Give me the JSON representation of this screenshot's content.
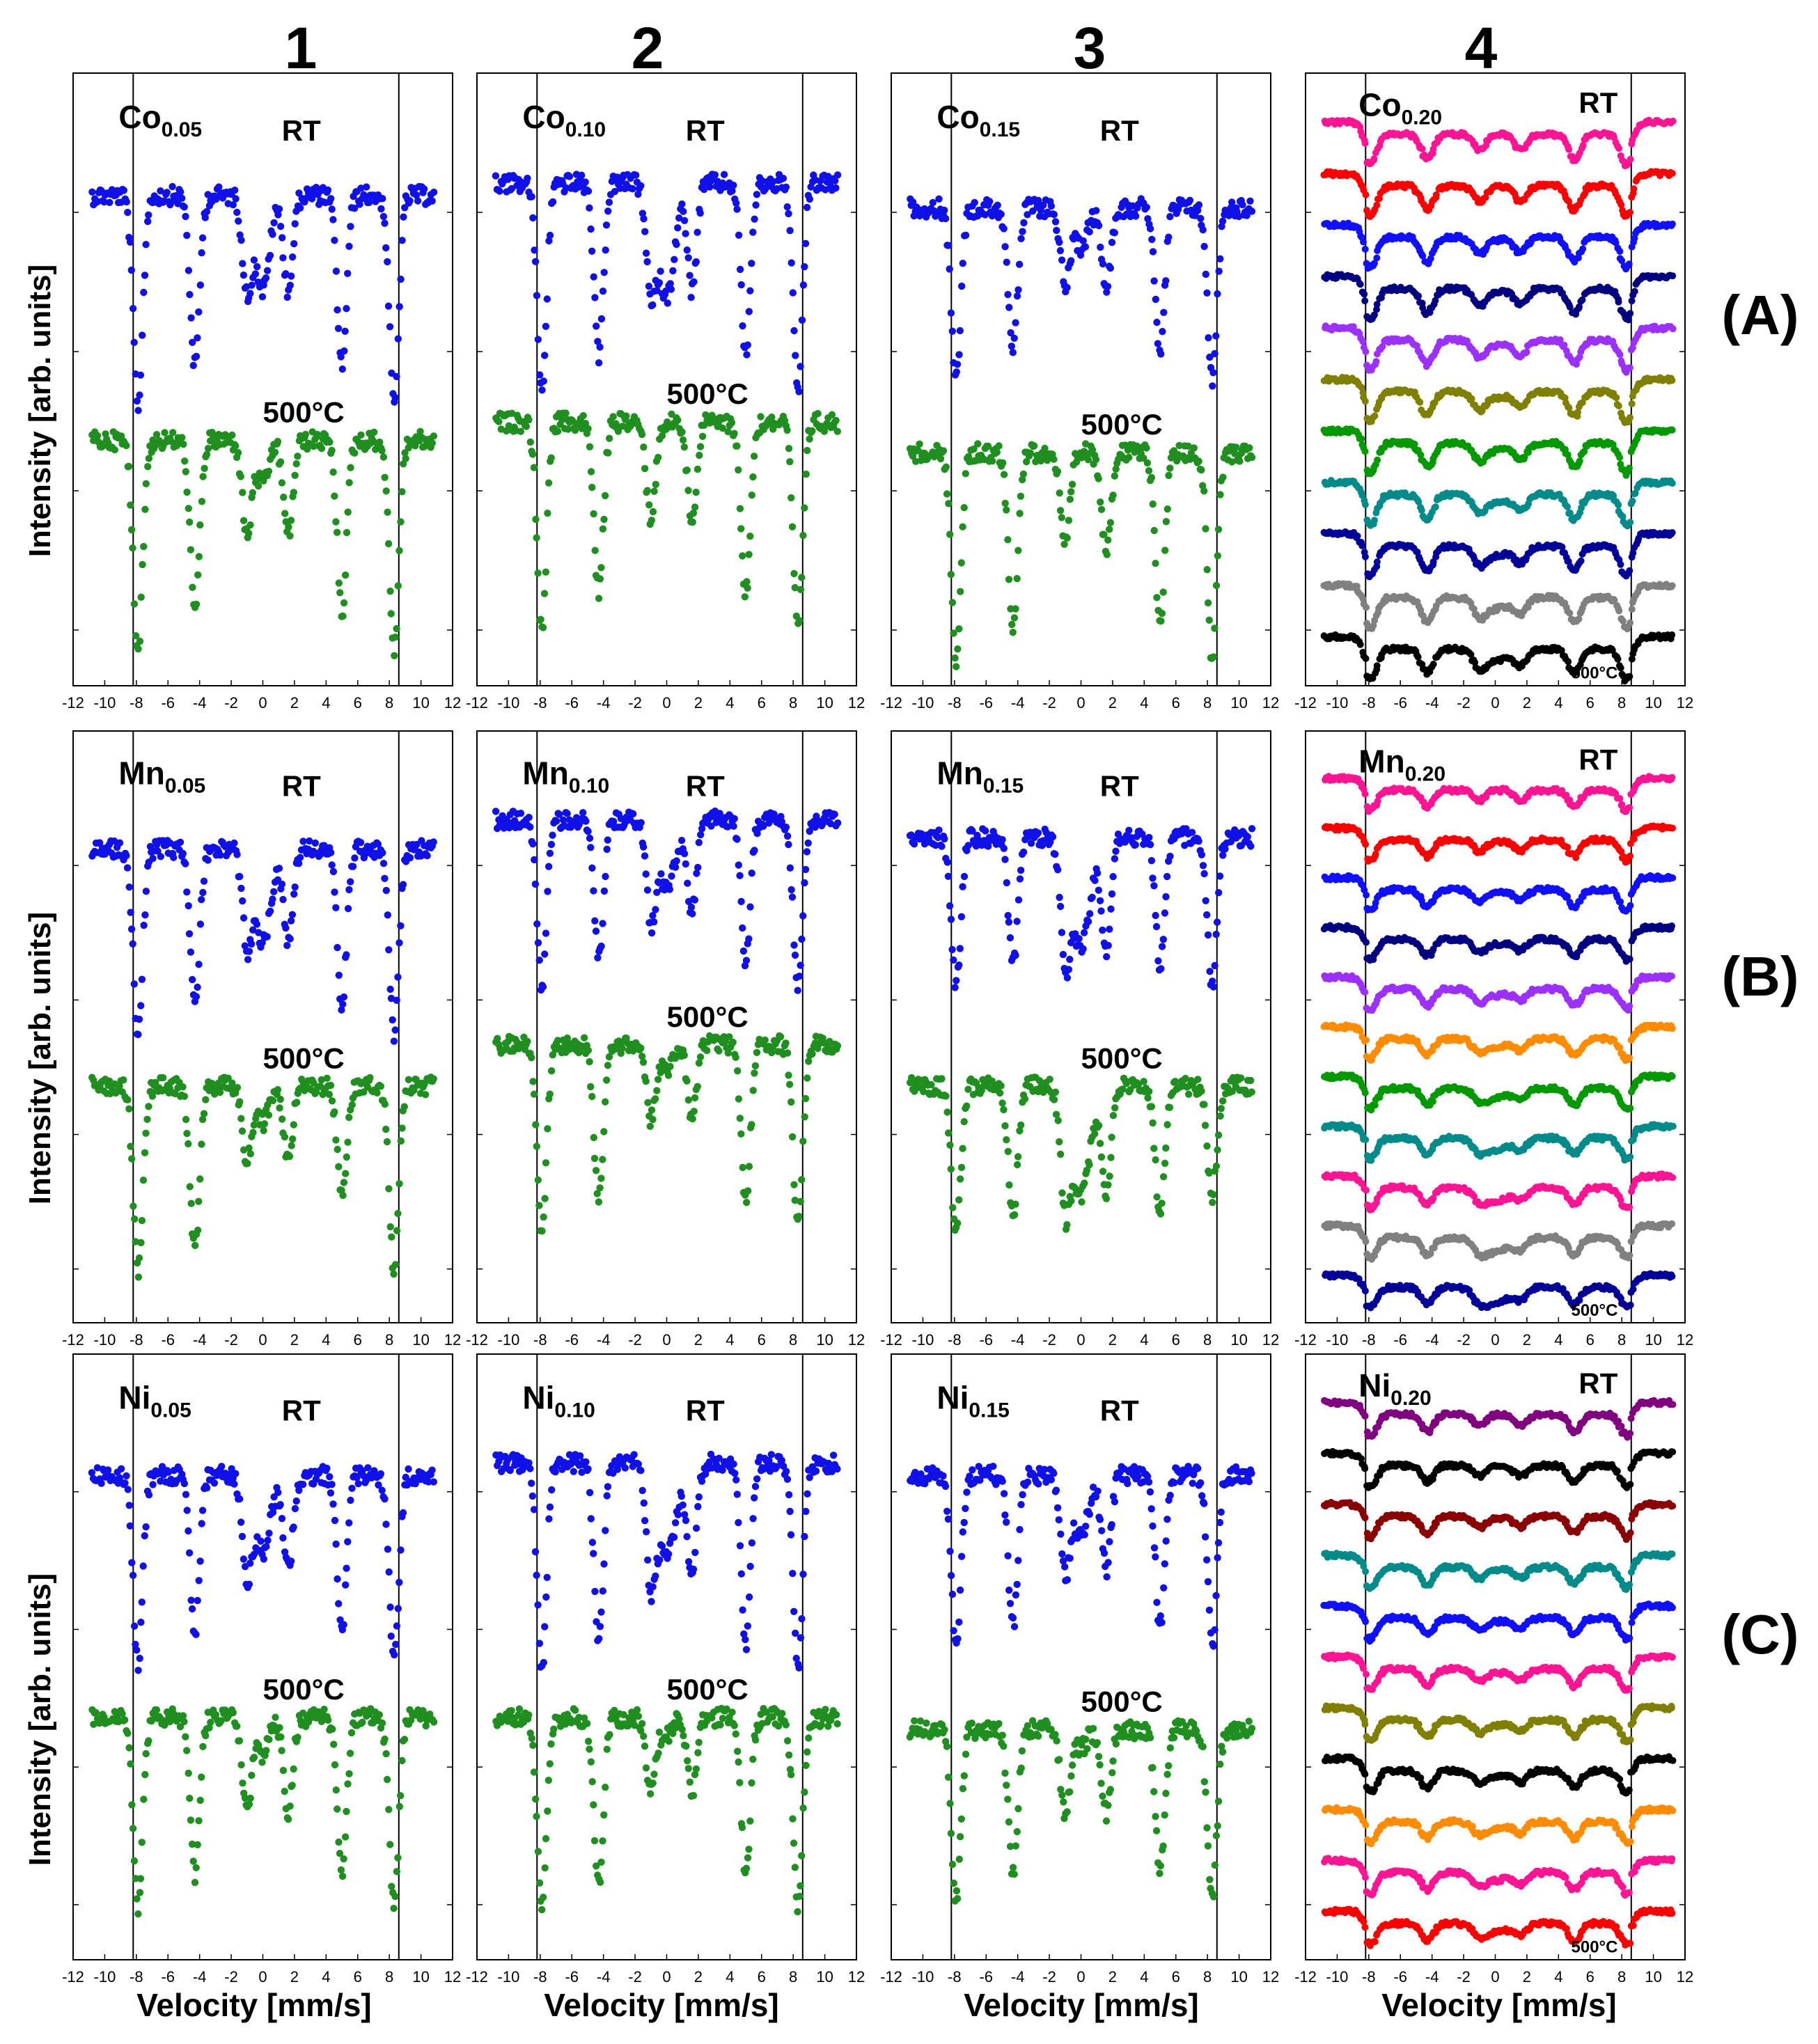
{
  "figure": {
    "column_labels": [
      "1",
      "2",
      "3",
      "4"
    ],
    "row_labels": [
      "(A)",
      "(B)",
      "(C)"
    ],
    "y_axis_label": "Intensity [arb. units]",
    "x_axis_label": "Velocity [mm/s]"
  },
  "chart_data": [
    {
      "type": "scatter",
      "element": "Co",
      "sub": "0.05",
      "series": [
        {
          "name": "RT",
          "color": "#1010e8",
          "baseline": 0.2,
          "depths": [
            0.55,
            0.45,
            0.25,
            0.25,
            0.45,
            0.55
          ],
          "center_depth": 0.25,
          "center_width": 0.6
        },
        {
          "name": "500°C",
          "color": "#1f8f1f",
          "baseline": 0.6,
          "depths": [
            0.55,
            0.45,
            0.25,
            0.25,
            0.45,
            0.55
          ],
          "center_depth": 0.12,
          "center_width": 0.5
        }
      ],
      "ylim": [
        0,
        1
      ],
      "xlim": [
        -12,
        12
      ],
      "xticks": [
        -12,
        -10,
        -8,
        -6,
        -4,
        -2,
        0,
        2,
        4,
        6,
        8,
        10,
        12
      ],
      "title": "Co0.05",
      "labels": [
        "RT",
        "500°C"
      ]
    },
    {
      "type": "scatter",
      "element": "Co",
      "sub": "0.10",
      "series": [
        {
          "name": "RT",
          "color": "#1010e8",
          "baseline": 0.18,
          "depths": [
            0.55,
            0.45,
            0.28,
            0.28,
            0.45,
            0.55
          ],
          "center_depth": 0.3,
          "center_width": 0.7
        },
        {
          "name": "500°C",
          "color": "#1f8f1f",
          "baseline": 0.57,
          "depths": [
            0.55,
            0.45,
            0.25,
            0.25,
            0.45,
            0.55
          ],
          "center_depth": 0.0,
          "center_width": 0.5
        }
      ],
      "ylim": [
        0,
        1
      ],
      "xlim": [
        -12,
        12
      ],
      "xticks": [
        -12,
        -10,
        -8,
        -6,
        -4,
        -2,
        0,
        2,
        4,
        6,
        8,
        10,
        12
      ],
      "title": "Co0.10",
      "labels": [
        "RT",
        "500°C"
      ]
    },
    {
      "type": "scatter",
      "element": "Co",
      "sub": "0.15",
      "series": [
        {
          "name": "RT",
          "color": "#1010e8",
          "baseline": 0.22,
          "depths": [
            0.45,
            0.38,
            0.2,
            0.2,
            0.38,
            0.45
          ],
          "center_depth": 0.1,
          "center_width": 0.6
        },
        {
          "name": "500°C",
          "color": "#1f8f1f",
          "baseline": 0.62,
          "depths": [
            0.55,
            0.45,
            0.25,
            0.25,
            0.45,
            0.55
          ],
          "center_depth": 0.0,
          "center_width": 0.5
        }
      ],
      "ylim": [
        0,
        1
      ],
      "xlim": [
        -12,
        12
      ],
      "xticks": [
        -12,
        -10,
        -8,
        -6,
        -4,
        -2,
        0,
        2,
        4,
        6,
        8,
        10,
        12
      ],
      "title": "Co0.15",
      "labels": [
        "RT",
        "500°C"
      ]
    },
    {
      "type": "scatter",
      "element": "Co",
      "sub": "0.20",
      "stack": true,
      "colors": [
        "#ff1493",
        "#ff0000",
        "#1010ff",
        "#000080",
        "#9b30ff",
        "#808000",
        "#009900",
        "#008b8b",
        "#000099",
        "#808080",
        "#000000"
      ],
      "stack_depth": 0.05,
      "center_depth": 0.02,
      "ylim": [
        0,
        1
      ],
      "xlim": [
        -12,
        12
      ],
      "xticks": [
        -12,
        -10,
        -8,
        -6,
        -4,
        -2,
        0,
        2,
        4,
        6,
        8,
        10,
        12
      ],
      "title": "Co0.20",
      "labels": [
        "RT",
        "500°C"
      ]
    },
    {
      "type": "scatter",
      "element": "Mn",
      "sub": "0.05",
      "series": [
        {
          "name": "RT",
          "color": "#1010e8",
          "baseline": 0.2,
          "depths": [
            0.5,
            0.42,
            0.25,
            0.25,
            0.42,
            0.5
          ],
          "center_depth": 0.25,
          "center_width": 0.7
        },
        {
          "name": "500°C",
          "color": "#1f8f1f",
          "baseline": 0.6,
          "depths": [
            0.5,
            0.45,
            0.2,
            0.2,
            0.3,
            0.5
          ],
          "center_depth": 0.1,
          "center_width": 0.5
        }
      ],
      "ylim": [
        0,
        1
      ],
      "xlim": [
        -12,
        12
      ],
      "xticks": [
        -12,
        -10,
        -8,
        -6,
        -4,
        -2,
        0,
        2,
        4,
        6,
        8,
        10,
        12
      ],
      "title": "Mn0.05",
      "labels": [
        "RT",
        "500°C"
      ]
    },
    {
      "type": "scatter",
      "element": "Mn",
      "sub": "0.10",
      "series": [
        {
          "name": "RT",
          "color": "#1010e8",
          "baseline": 0.15,
          "depths": [
            0.45,
            0.38,
            0.25,
            0.25,
            0.38,
            0.45
          ],
          "center_depth": 0.18,
          "center_width": 0.8
        },
        {
          "name": "500°C",
          "color": "#1f8f1f",
          "baseline": 0.53,
          "depths": [
            0.5,
            0.42,
            0.2,
            0.2,
            0.42,
            0.5
          ],
          "center_depth": 0.08,
          "center_width": 0.5
        }
      ],
      "ylim": [
        0,
        1
      ],
      "xlim": [
        -12,
        12
      ],
      "xticks": [
        -12,
        -10,
        -8,
        -6,
        -4,
        -2,
        0,
        2,
        4,
        6,
        8,
        10,
        12
      ],
      "title": "Mn0.10",
      "labels": [
        "RT",
        "500°C"
      ]
    },
    {
      "type": "scatter",
      "element": "Mn",
      "sub": "0.15",
      "series": [
        {
          "name": "RT",
          "color": "#1010e8",
          "baseline": 0.18,
          "depths": [
            0.4,
            0.35,
            0.3,
            0.3,
            0.35,
            0.4
          ],
          "center_depth": 0.3,
          "center_width": 0.8
        },
        {
          "name": "500°C",
          "color": "#1f8f1f",
          "baseline": 0.6,
          "depths": [
            0.4,
            0.35,
            0.3,
            0.3,
            0.35,
            0.3
          ],
          "center_depth": 0.3,
          "center_width": 0.8
        }
      ],
      "ylim": [
        0,
        1
      ],
      "xlim": [
        -12,
        12
      ],
      "xticks": [
        -12,
        -10,
        -8,
        -6,
        -4,
        -2,
        0,
        2,
        4,
        6,
        8,
        10,
        12
      ],
      "title": "Mn0.15",
      "labels": [
        "RT",
        "500°C"
      ]
    },
    {
      "type": "scatter",
      "element": "Mn",
      "sub": "0.20",
      "stack": true,
      "colors": [
        "#ff1493",
        "#ff0000",
        "#1010ff",
        "#000080",
        "#9b30ff",
        "#ff8c00",
        "#009900",
        "#008b8b",
        "#ff1493",
        "#808080",
        "#000099"
      ],
      "stack_depth": 0.035,
      "center_depth": 0.04,
      "ylim": [
        0,
        1
      ],
      "xlim": [
        -12,
        12
      ],
      "xticks": [
        -12,
        -10,
        -8,
        -6,
        -4,
        -2,
        0,
        2,
        4,
        6,
        8,
        10,
        12
      ],
      "title": "Mn0.20",
      "labels": [
        "RT",
        "500°C"
      ]
    },
    {
      "type": "scatter",
      "element": "Ni",
      "sub": "0.05",
      "series": [
        {
          "name": "RT",
          "color": "#1010e8",
          "baseline": 0.2,
          "depths": [
            0.5,
            0.42,
            0.25,
            0.25,
            0.42,
            0.5
          ],
          "center_depth": 0.2,
          "center_width": 0.7
        },
        {
          "name": "500°C",
          "color": "#1f8f1f",
          "baseline": 0.6,
          "depths": [
            0.5,
            0.42,
            0.25,
            0.25,
            0.42,
            0.5
          ],
          "center_depth": 0.1,
          "center_width": 0.5
        }
      ],
      "ylim": [
        0,
        1
      ],
      "xlim": [
        -12,
        12
      ],
      "xticks": [
        -12,
        -10,
        -8,
        -6,
        -4,
        -2,
        0,
        2,
        4,
        6,
        8,
        10,
        12
      ],
      "title": "Ni0.05",
      "labels": [
        "RT",
        "500°C"
      ]
    },
    {
      "type": "scatter",
      "element": "Ni",
      "sub": "0.10",
      "series": [
        {
          "name": "RT",
          "color": "#1010e8",
          "baseline": 0.18,
          "depths": [
            0.55,
            0.48,
            0.3,
            0.3,
            0.48,
            0.55
          ],
          "center_depth": 0.25,
          "center_width": 0.8
        },
        {
          "name": "500°C",
          "color": "#1f8f1f",
          "baseline": 0.6,
          "depths": [
            0.5,
            0.45,
            0.2,
            0.2,
            0.42,
            0.5
          ],
          "center_depth": 0.05,
          "center_width": 0.5
        }
      ],
      "ylim": [
        0,
        1
      ],
      "xlim": [
        -12,
        12
      ],
      "xticks": [
        -12,
        -10,
        -8,
        -6,
        -4,
        -2,
        0,
        2,
        4,
        6,
        8,
        10,
        12
      ],
      "title": "Ni0.10",
      "labels": [
        "RT",
        "500°C"
      ]
    },
    {
      "type": "scatter",
      "element": "Ni",
      "sub": "0.15",
      "series": [
        {
          "name": "RT",
          "color": "#1010e8",
          "baseline": 0.2,
          "depths": [
            0.45,
            0.4,
            0.25,
            0.25,
            0.4,
            0.45
          ],
          "center_depth": 0.15,
          "center_width": 0.7
        },
        {
          "name": "500°C",
          "color": "#1f8f1f",
          "baseline": 0.62,
          "depths": [
            0.45,
            0.38,
            0.22,
            0.22,
            0.38,
            0.45
          ],
          "center_depth": 0.05,
          "center_width": 0.5
        }
      ],
      "ylim": [
        0,
        1
      ],
      "xlim": [
        -12,
        12
      ],
      "xticks": [
        -12,
        -10,
        -8,
        -6,
        -4,
        -2,
        0,
        2,
        4,
        6,
        8,
        10,
        12
      ],
      "title": "Ni0.15",
      "labels": [
        "RT",
        "500°C"
      ]
    },
    {
      "type": "scatter",
      "element": "Ni",
      "sub": "0.20",
      "stack": true,
      "colors": [
        "#800080",
        "#000000",
        "#8b0000",
        "#008b8b",
        "#1010ff",
        "#ff1493",
        "#808000",
        "#000000",
        "#ff8c00",
        "#ff1493",
        "#ff0000"
      ],
      "stack_depth": 0.035,
      "center_depth": 0.02,
      "ylim": [
        0,
        1
      ],
      "xlim": [
        -12,
        12
      ],
      "xticks": [
        -12,
        -10,
        -8,
        -6,
        -4,
        -2,
        0,
        2,
        4,
        6,
        8,
        10,
        12
      ],
      "title": "Ni0.20",
      "labels": [
        "RT",
        "500°C"
      ]
    }
  ]
}
